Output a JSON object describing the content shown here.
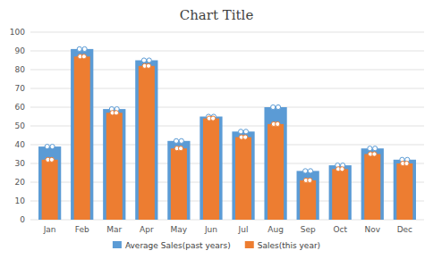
{
  "chart_data": {
    "type": "bar",
    "title": "Chart Title",
    "categories": [
      "Jan",
      "Feb",
      "Mar",
      "Apr",
      "May",
      "Jun",
      "Jul",
      "Aug",
      "Sep",
      "Oct",
      "Nov",
      "Dec"
    ],
    "series": [
      {
        "name": "Average Sales(past years)",
        "color": "#5B9BD5",
        "values": [
          39,
          91,
          59,
          85,
          42,
          55,
          47,
          60,
          26,
          29,
          38,
          32
        ]
      },
      {
        "name": "Sales(this year)",
        "color": "#ED7D31",
        "values": [
          32,
          87,
          57,
          82,
          38,
          54,
          44,
          51,
          21,
          27,
          35,
          30
        ]
      }
    ],
    "ylim": [
      0,
      100
    ],
    "yticks": [
      0,
      10,
      20,
      30,
      40,
      50,
      60,
      70,
      80,
      90,
      100
    ],
    "grid": true,
    "legend": "bottom"
  }
}
